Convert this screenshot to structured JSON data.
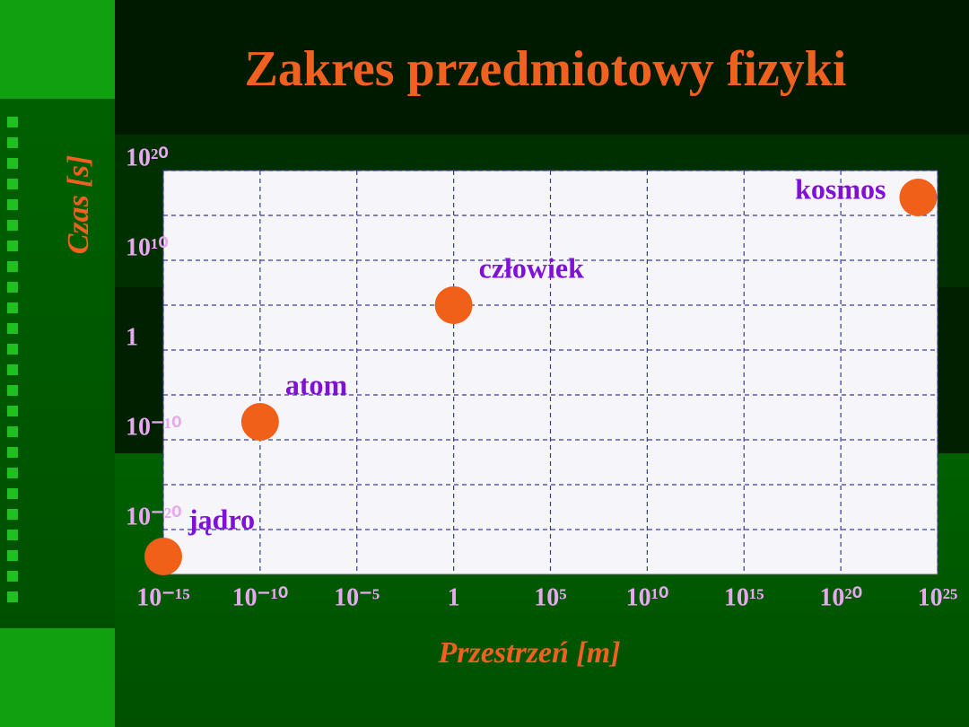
{
  "chart_data": {
    "type": "scatter",
    "title": "Zakres przedmiotowy fizyki",
    "xlabel": "Przestrzeń [m]",
    "ylabel": "Czas [s]",
    "log_x": true,
    "log_y": true,
    "grid": true,
    "xlim": [
      1e-15,
      1e+25
    ],
    "xticks": [
      {
        "value": 1e-15,
        "label": "10⁻¹⁵"
      },
      {
        "value": 1e-10,
        "label": "10⁻¹⁰"
      },
      {
        "value": 1e-05,
        "label": "10⁻⁵"
      },
      1,
      {
        "value": 100000.0,
        "label": "10⁵"
      },
      {
        "value": 10000000000.0,
        "label": "10¹⁰"
      },
      {
        "value": 1000000000000000.0,
        "label": "10¹⁵"
      },
      {
        "value": 1e+20,
        "label": "10²⁰"
      },
      {
        "value": 1e+25,
        "label": "10²⁵"
      }
    ],
    "ylim": [
      1e-25,
      1e+20
    ],
    "yticks": [
      {
        "value": 1e+20,
        "label": "10²⁰"
      },
      {
        "value": 10000000000.0,
        "label": "10¹⁰"
      },
      1,
      {
        "value": 1e-10,
        "label": "10⁻¹⁰"
      },
      {
        "value": 1e-20,
        "label": "10⁻²⁰"
      }
    ],
    "color": "#f06018",
    "x": [
      1e-15,
      1e-10,
      1,
      1e+24
    ],
    "values": [
      1e-23,
      1e-08,
      100000.0,
      1e+17
    ],
    "point_labels": [
      "jądro",
      "atom",
      "człowiek",
      "kosmos"
    ]
  }
}
